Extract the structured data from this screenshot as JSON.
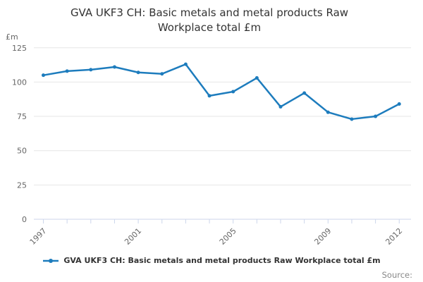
{
  "title": {
    "line1": "GVA UKF3 CH: Basic metals and metal products Raw",
    "line2": "Workplace total £m"
  },
  "y_axis": {
    "unit_label": "£m"
  },
  "legend": {
    "label": "GVA UKF3 CH: Basic metals and metal products Raw Workplace total £m"
  },
  "source_label": "Source:",
  "colors": {
    "series": "#1d7cbd",
    "grid": "#e6e6e6",
    "axis": "#ccd6eb",
    "tick_label": "#666666",
    "title_text": "#333333",
    "source_text": "#888888"
  },
  "chart_data": {
    "type": "line",
    "title": "GVA UKF3 CH: Basic metals and metal products Raw Workplace total £m",
    "xlabel": "",
    "ylabel": "£m",
    "x": [
      1997,
      1998,
      1999,
      2000,
      2001,
      2002,
      2003,
      2004,
      2005,
      2006,
      2007,
      2008,
      2009,
      2010,
      2011,
      2012
    ],
    "series": [
      {
        "name": "GVA UKF3 CH: Basic metals and metal products Raw Workplace total £m",
        "values": [
          105,
          108,
          109,
          111,
          107,
          106,
          113,
          90,
          93,
          103,
          82,
          92,
          78,
          73,
          75,
          84
        ]
      }
    ],
    "ylim": [
      0,
      125
    ],
    "y_ticks": [
      0,
      25,
      50,
      75,
      100,
      125
    ],
    "x_tick_labels": [
      1997,
      2001,
      2005,
      2009,
      2012
    ],
    "grid": true,
    "legend_position": "bottom",
    "marker": "circle"
  }
}
